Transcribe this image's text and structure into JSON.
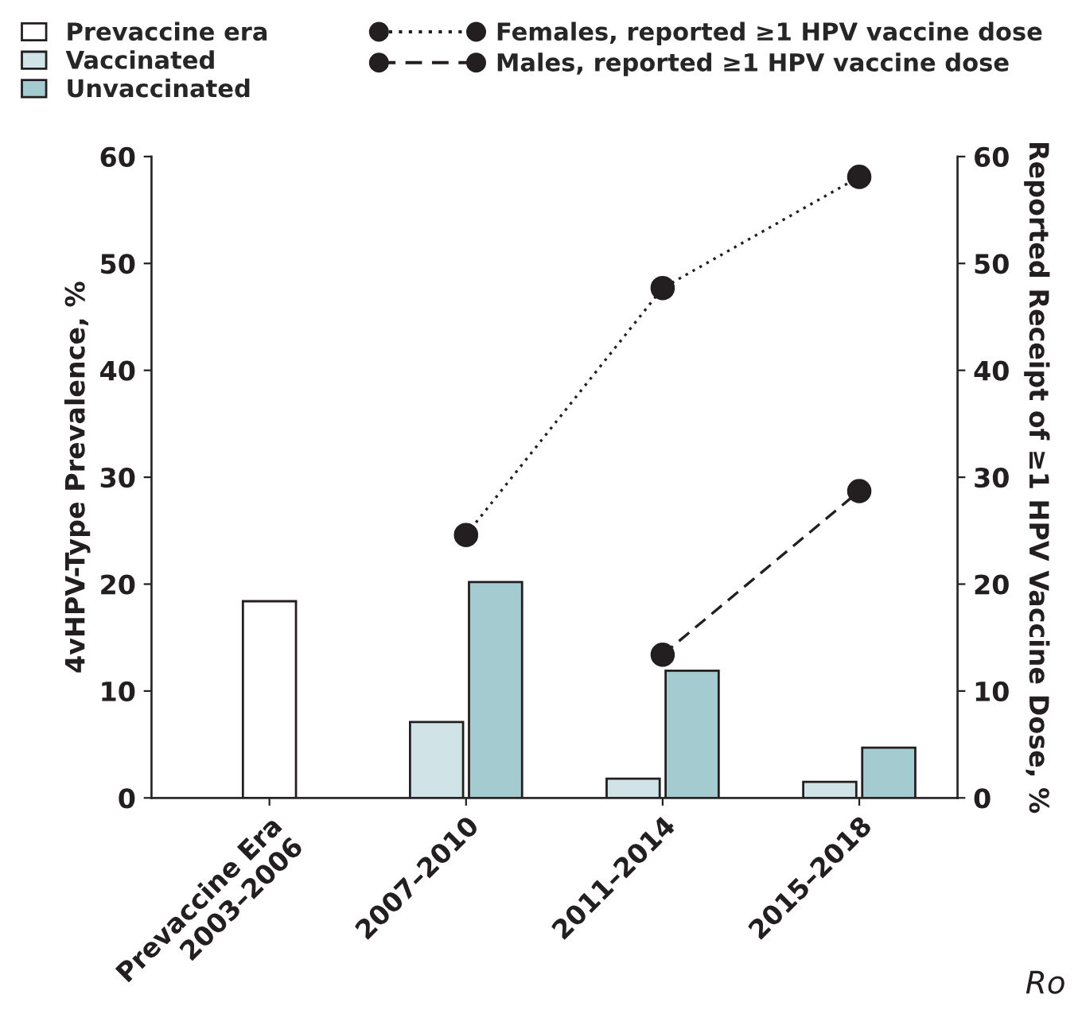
{
  "chart_data": {
    "type": "bar",
    "ylabel": "4vHPV-Type Prevalence, %",
    "y2label": "Reported Receipt of ≥1 HPV Vaccine Dose, %",
    "categories": [
      "Prevaccine Era\n2003–2006",
      "2007–2010",
      "2011–2014",
      "2015–2018"
    ],
    "series": [
      {
        "name": "Prevaccine era",
        "color": "#ffffff",
        "values": [
          18.4,
          null,
          null,
          null
        ]
      },
      {
        "name": "Vaccinated",
        "color": "#d0e4e7",
        "values": [
          null,
          7.1,
          1.8,
          1.5
        ]
      },
      {
        "name": "Unvaccinated",
        "color": "#a3cbd0",
        "values": [
          null,
          20.2,
          11.9,
          4.7
        ]
      },
      {
        "name": "Females, reported ≥1 HPV vaccine dose",
        "type": "line",
        "axis": "y2",
        "color": "#231f20",
        "marker": "circle",
        "line_style": "dotted",
        "values": [
          null,
          24.6,
          47.7,
          58.1
        ]
      },
      {
        "name": "Males, reported ≥1 HPV vaccine dose",
        "type": "line",
        "axis": "y2",
        "color": "#231f20",
        "marker": "circle",
        "line_style": "dashed",
        "values": [
          null,
          null,
          13.4,
          28.7
        ]
      }
    ],
    "ylim": [
      0,
      60
    ],
    "yticks": [
      0,
      10,
      20,
      30,
      40,
      50,
      60
    ],
    "y2lim": [
      0,
      60
    ],
    "y2ticks": [
      0,
      10,
      20,
      30,
      40,
      50,
      60
    ],
    "legend": "top",
    "grid": false,
    "annotations": [
      "Ro"
    ]
  }
}
